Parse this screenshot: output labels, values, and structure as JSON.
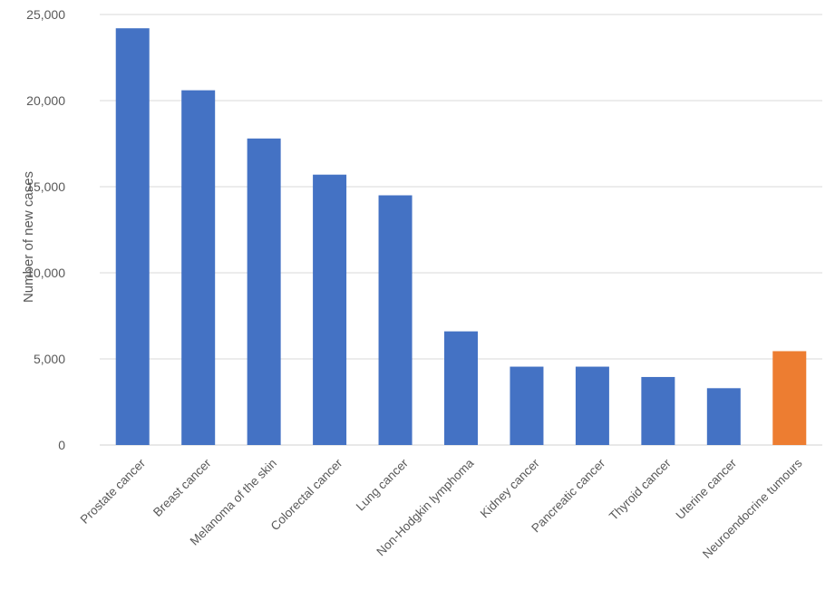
{
  "chart_data": {
    "type": "bar",
    "title": "",
    "xlabel": "",
    "ylabel": "Number of new cases",
    "ylim": [
      0,
      25000
    ],
    "yticks": [
      0,
      5000,
      10000,
      15000,
      20000,
      25000
    ],
    "ytick_labels": [
      "0",
      "5,000",
      "10,000",
      "15,000",
      "20,000",
      "25,000"
    ],
    "grid": true,
    "legend": "none",
    "categories": [
      "Prostate cancer",
      "Breast cancer",
      "Melanoma of the skin",
      "Colorectal cancer",
      "Lung cancer",
      "Non-Hodgkin lymphoma",
      "Kidney cancer",
      "Pancreatic cancer",
      "Thyroid cancer",
      "Uterine cancer",
      "Neuroendocrine tumours"
    ],
    "values": [
      24200,
      20600,
      17800,
      15700,
      14500,
      6600,
      4550,
      4550,
      3950,
      3300,
      5450
    ],
    "colors": [
      "#4472c4",
      "#4472c4",
      "#4472c4",
      "#4472c4",
      "#4472c4",
      "#4472c4",
      "#4472c4",
      "#4472c4",
      "#4472c4",
      "#4472c4",
      "#ed7d31"
    ]
  }
}
